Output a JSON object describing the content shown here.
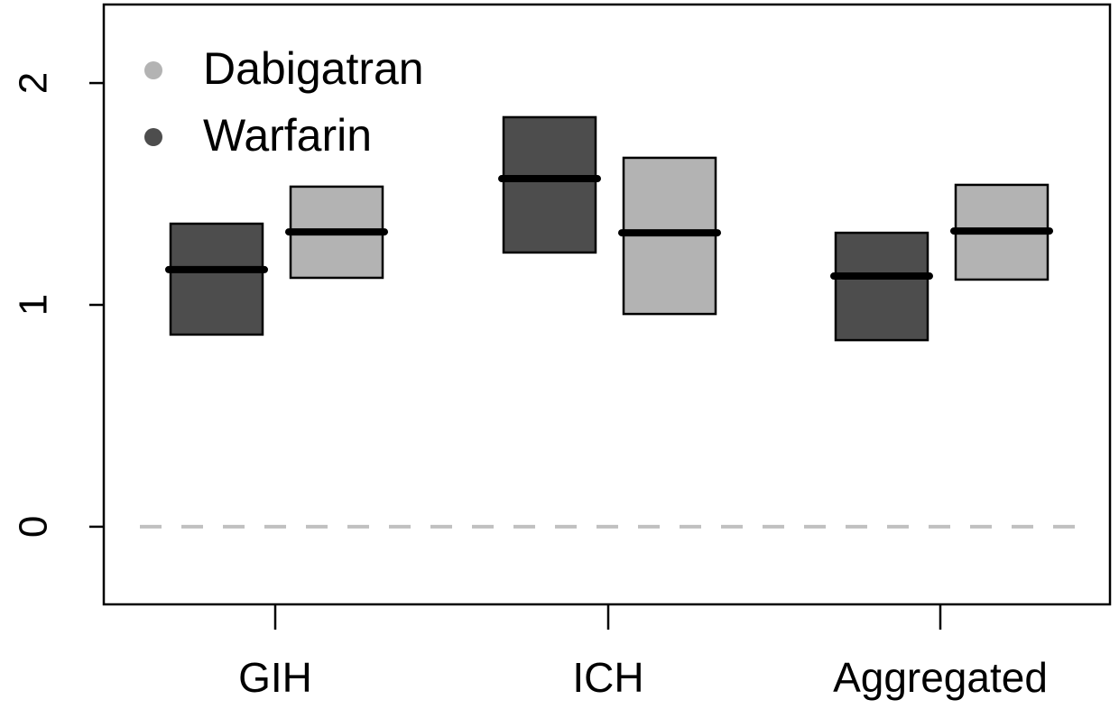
{
  "chart_data": {
    "type": "box",
    "categories": [
      "GIH",
      "ICH",
      "Aggregated"
    ],
    "series": [
      {
        "name": "Dabigatran",
        "color": "#b3b3b3",
        "low": [
          1.122,
          0.959,
          1.114
        ],
        "median": [
          1.329,
          1.325,
          1.333
        ],
        "high": [
          1.533,
          1.663,
          1.541
        ]
      },
      {
        "name": "Warfarin",
        "color": "#4d4d4d",
        "low": [
          0.866,
          1.236,
          0.841
        ],
        "median": [
          1.159,
          1.569,
          1.13
        ],
        "high": [
          1.366,
          1.846,
          1.325
        ]
      }
    ],
    "ylim": [
      -0.35,
      2.354
    ],
    "yticks": [
      0,
      1,
      2
    ],
    "reference_line": 0,
    "reference_color": "#c0c0c0",
    "legend": "top-left"
  }
}
